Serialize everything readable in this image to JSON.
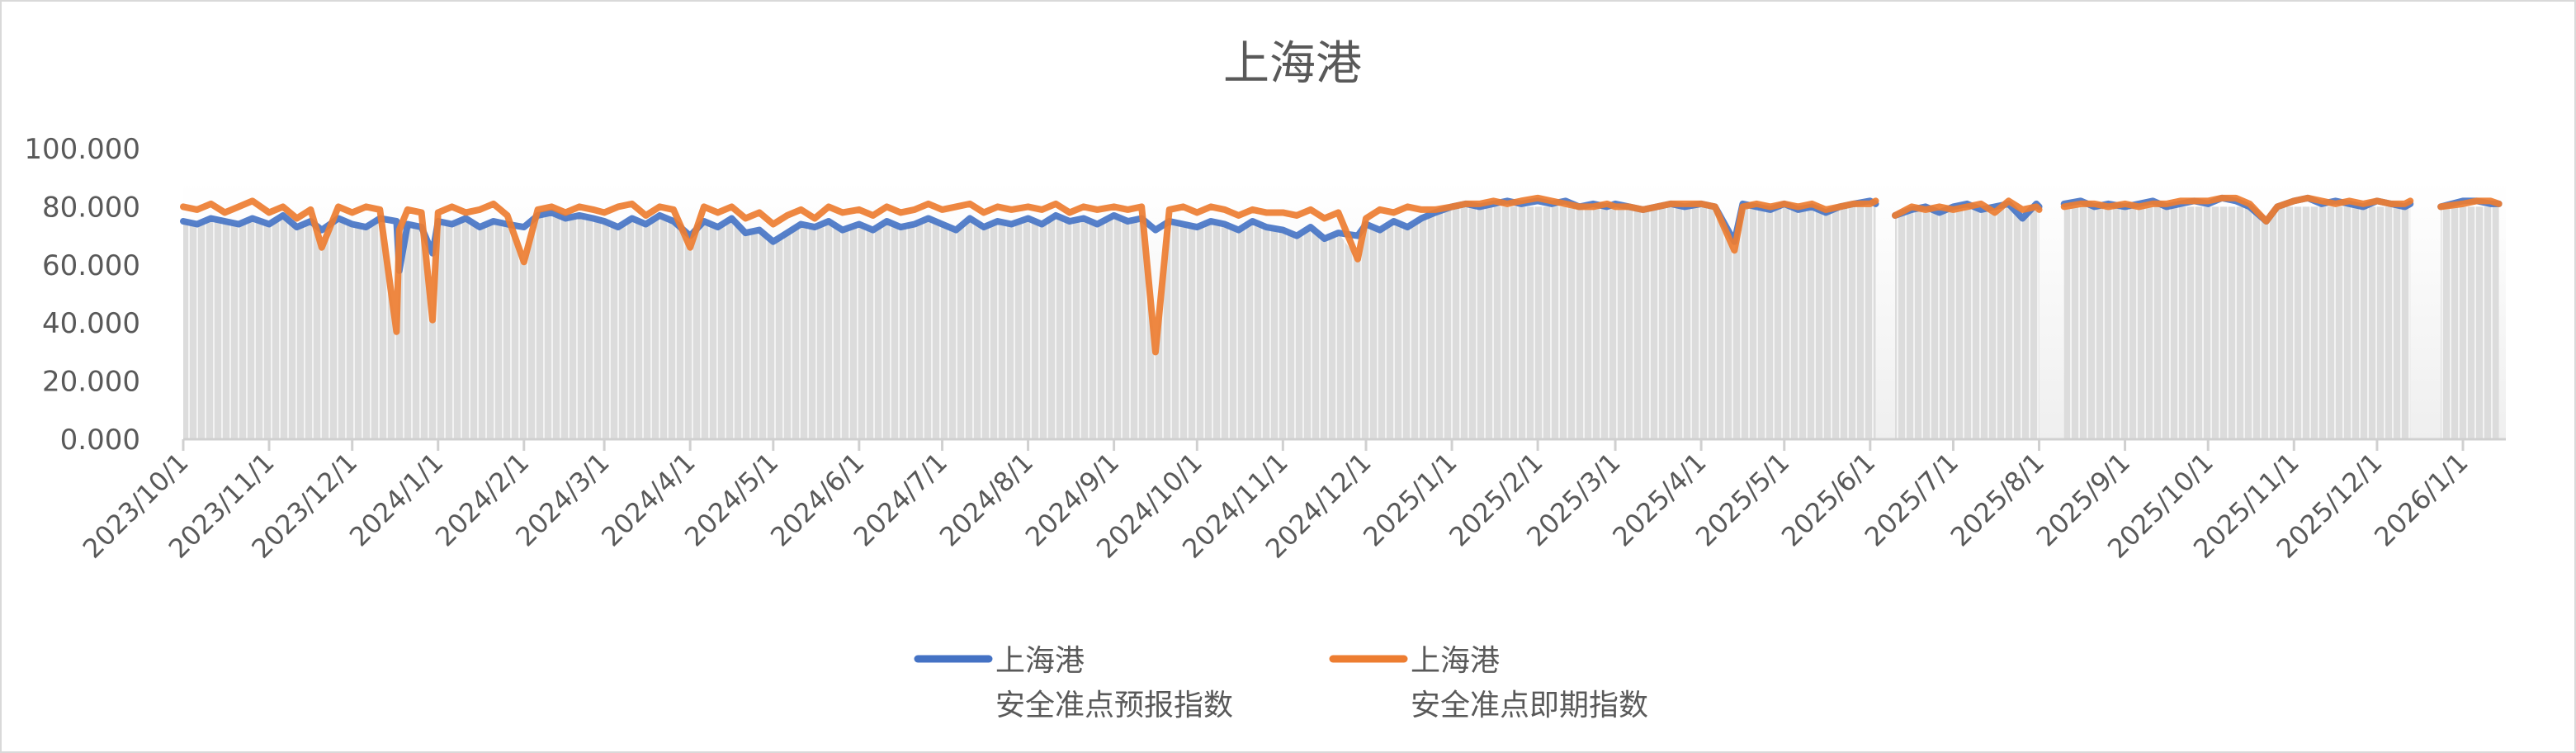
{
  "chart_data": {
    "type": "line",
    "title": "上海港",
    "ylim": [
      0,
      100
    ],
    "y_ticks": [
      0,
      20,
      40,
      60,
      80,
      100
    ],
    "y_tick_labels": [
      "0.000",
      "20.000",
      "40.000",
      "60.000",
      "80.000",
      "100.000"
    ],
    "x_tick_labels": [
      "2023/10/1",
      "2023/11/1",
      "2023/12/1",
      "2024/1/1",
      "2024/2/1",
      "2024/3/1",
      "2024/4/1",
      "2024/5/1",
      "2024/6/1",
      "2024/7/1",
      "2024/8/1",
      "2024/9/1",
      "2024/10/1",
      "2024/11/1",
      "2024/12/1",
      "2025/1/1",
      "2025/2/1",
      "2025/3/1",
      "2025/4/1",
      "2025/5/1",
      "2025/6/1",
      "2025/7/1",
      "2025/8/1",
      "2025/9/1",
      "2025/10/1",
      "2025/11/1",
      "2025/12/1",
      "2026/1/1"
    ],
    "grid": false,
    "legend_placement": "bottom",
    "colors": {
      "forecast": "#4472C4",
      "actual": "#ED7D31",
      "background_columns": "#DCDCDC"
    },
    "x": [
      "2023-10-01",
      "2023-10-06",
      "2023-10-11",
      "2023-10-16",
      "2023-10-21",
      "2023-10-26",
      "2023-11-01",
      "2023-11-06",
      "2023-11-11",
      "2023-11-16",
      "2023-11-20",
      "2023-11-26",
      "2023-12-01",
      "2023-12-06",
      "2023-12-11",
      "2023-12-17",
      "2023-12-18",
      "2023-12-21",
      "2023-12-26",
      "2023-12-30",
      "2024-01-01",
      "2024-01-06",
      "2024-01-11",
      "2024-01-16",
      "2024-01-21",
      "2024-01-26",
      "2024-02-01",
      "2024-02-06",
      "2024-02-11",
      "2024-02-16",
      "2024-02-21",
      "2024-02-26",
      "2024-03-01",
      "2024-03-06",
      "2024-03-11",
      "2024-03-16",
      "2024-03-21",
      "2024-03-26",
      "2024-04-01",
      "2024-04-06",
      "2024-04-11",
      "2024-04-16",
      "2024-04-21",
      "2024-04-26",
      "2024-05-01",
      "2024-05-06",
      "2024-05-11",
      "2024-05-16",
      "2024-05-21",
      "2024-05-26",
      "2024-06-01",
      "2024-06-06",
      "2024-06-11",
      "2024-06-16",
      "2024-06-21",
      "2024-06-26",
      "2024-07-01",
      "2024-07-06",
      "2024-07-11",
      "2024-07-16",
      "2024-07-21",
      "2024-07-26",
      "2024-08-01",
      "2024-08-06",
      "2024-08-11",
      "2024-08-16",
      "2024-08-21",
      "2024-08-26",
      "2024-09-01",
      "2024-09-06",
      "2024-09-11",
      "2024-09-16",
      "2024-09-21",
      "2024-09-26",
      "2024-10-01",
      "2024-10-06",
      "2024-10-11",
      "2024-10-16",
      "2024-10-21",
      "2024-10-26",
      "2024-11-01",
      "2024-11-06",
      "2024-11-11",
      "2024-11-16",
      "2024-11-21",
      "2024-11-28",
      "2024-12-01",
      "2024-12-06",
      "2024-12-11",
      "2024-12-16",
      "2024-12-21",
      "2024-12-26",
      "2025-01-01",
      "2025-01-06",
      "2025-01-11",
      "2025-01-16",
      "2025-01-21",
      "2025-01-26",
      "2025-02-01",
      "2025-02-06",
      "2025-02-11",
      "2025-02-16",
      "2025-02-21",
      "2025-02-26",
      "2025-03-01",
      "2025-03-06",
      "2025-03-11",
      "2025-03-16",
      "2025-03-21",
      "2025-03-26",
      "2025-04-01",
      "2025-04-06",
      "2025-04-13",
      "2025-04-16",
      "2025-04-21",
      "2025-04-26",
      "2025-05-01",
      "2025-05-06",
      "2025-05-11",
      "2025-05-16",
      "2025-05-21",
      "2025-05-26",
      "2025-06-01",
      "2025-06-03",
      "2025-06-05",
      "2025-06-09",
      "2025-06-10",
      "2025-06-16",
      "2025-06-21",
      "2025-06-26",
      "2025-07-01",
      "2025-07-06",
      "2025-07-11",
      "2025-07-16",
      "2025-07-21",
      "2025-07-26",
      "2025-07-31",
      "2025-08-01",
      "2025-08-05",
      "2025-08-09",
      "2025-08-10",
      "2025-08-16",
      "2025-08-21",
      "2025-08-26",
      "2025-09-01",
      "2025-09-06",
      "2025-09-11",
      "2025-09-16",
      "2025-09-21",
      "2025-09-26",
      "2025-10-01",
      "2025-10-06",
      "2025-10-11",
      "2025-10-16",
      "2025-10-22",
      "2025-10-26",
      "2025-11-01",
      "2025-11-06",
      "2025-11-11",
      "2025-11-16",
      "2025-11-21",
      "2025-11-26",
      "2025-12-01",
      "2025-12-06",
      "2025-12-11",
      "2025-12-13",
      "2025-12-15",
      "2025-12-23",
      "2025-12-24",
      "2026-01-01",
      "2026-01-06",
      "2026-01-11",
      "2026-01-14"
    ],
    "series": [
      {
        "name": "上海港\n安全准点预报指数",
        "values": [
          75,
          74,
          76,
          75,
          74,
          76,
          74,
          77,
          73,
          75,
          72,
          76,
          74,
          73,
          76,
          75,
          58,
          74,
          73,
          64,
          75,
          74,
          76,
          73,
          75,
          74,
          73,
          77,
          78,
          76,
          77,
          76,
          75,
          73,
          76,
          74,
          77,
          75,
          70,
          75,
          73,
          76,
          71,
          72,
          68,
          71,
          74,
          73,
          75,
          72,
          74,
          72,
          75,
          73,
          74,
          76,
          74,
          72,
          76,
          73,
          75,
          74,
          76,
          74,
          77,
          75,
          76,
          74,
          77,
          75,
          76,
          72,
          75,
          74,
          73,
          75,
          74,
          72,
          75,
          73,
          72,
          70,
          73,
          69,
          71,
          70,
          74,
          72,
          75,
          73,
          76,
          78,
          80,
          81,
          80,
          81,
          82,
          81,
          82,
          81,
          82,
          80,
          81,
          80,
          81,
          80,
          79,
          80,
          81,
          80,
          81,
          80,
          68,
          81,
          80,
          79,
          81,
          79,
          80,
          78,
          80,
          81,
          82,
          81,
          null,
          null,
          77,
          79,
          80,
          78,
          80,
          81,
          79,
          80,
          81,
          76,
          81,
          80,
          null,
          null,
          81,
          82,
          80,
          81,
          80,
          81,
          82,
          80,
          81,
          82,
          81,
          83,
          82,
          80,
          75,
          80,
          82,
          83,
          81,
          82,
          81,
          80,
          82,
          81,
          80,
          81,
          null,
          null,
          80,
          82,
          82,
          81,
          81
        ]
      },
      {
        "name": "上海港\n安全准点即期指数",
        "values": [
          80,
          79,
          81,
          78,
          80,
          82,
          78,
          80,
          76,
          79,
          66,
          80,
          78,
          80,
          79,
          37,
          72,
          79,
          78,
          41,
          78,
          80,
          78,
          79,
          81,
          77,
          61,
          79,
          80,
          78,
          80,
          79,
          78,
          80,
          81,
          77,
          80,
          79,
          66,
          80,
          78,
          80,
          76,
          78,
          74,
          77,
          79,
          76,
          80,
          78,
          79,
          77,
          80,
          78,
          79,
          81,
          79,
          80,
          81,
          78,
          80,
          79,
          80,
          79,
          81,
          78,
          80,
          79,
          80,
          79,
          80,
          30,
          79,
          80,
          78,
          80,
          79,
          77,
          79,
          78,
          78,
          77,
          79,
          76,
          78,
          62,
          76,
          79,
          78,
          80,
          79,
          79,
          80,
          81,
          81,
          82,
          81,
          82,
          83,
          82,
          81,
          80,
          80,
          81,
          80,
          80,
          79,
          80,
          81,
          81,
          81,
          80,
          65,
          80,
          81,
          80,
          81,
          80,
          81,
          79,
          80,
          81,
          81,
          82,
          null,
          null,
          77,
          80,
          79,
          80,
          79,
          80,
          81,
          78,
          82,
          79,
          80,
          79,
          null,
          null,
          80,
          81,
          81,
          80,
          81,
          80,
          81,
          81,
          82,
          82,
          82,
          83,
          83,
          81,
          75,
          80,
          82,
          83,
          82,
          81,
          82,
          81,
          82,
          81,
          81,
          82,
          null,
          null,
          80,
          81,
          82,
          82,
          81
        ]
      }
    ]
  }
}
